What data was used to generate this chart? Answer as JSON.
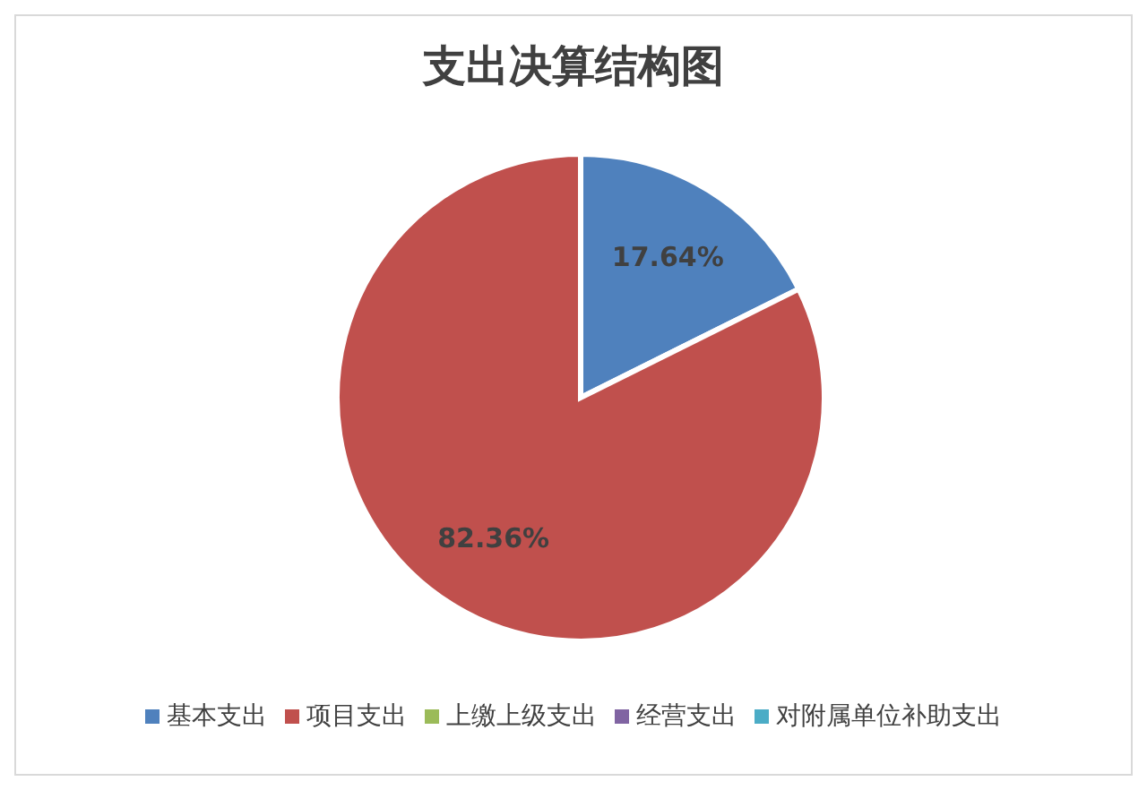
{
  "chart_data": {
    "type": "pie",
    "title": "支出决算结构图",
    "categories": [
      "基本支出",
      "项目支出",
      "上缴上级支出",
      "经营支出",
      "对附属单位补助支出"
    ],
    "values": [
      17.64,
      82.36,
      0,
      0,
      0
    ],
    "colors": [
      "#4f81bd",
      "#c0504d",
      "#9bbb59",
      "#8064a2",
      "#4bacc6"
    ],
    "value_labels": [
      "17.64%",
      "82.36%",
      null,
      null,
      null
    ],
    "legend": "bottom"
  }
}
